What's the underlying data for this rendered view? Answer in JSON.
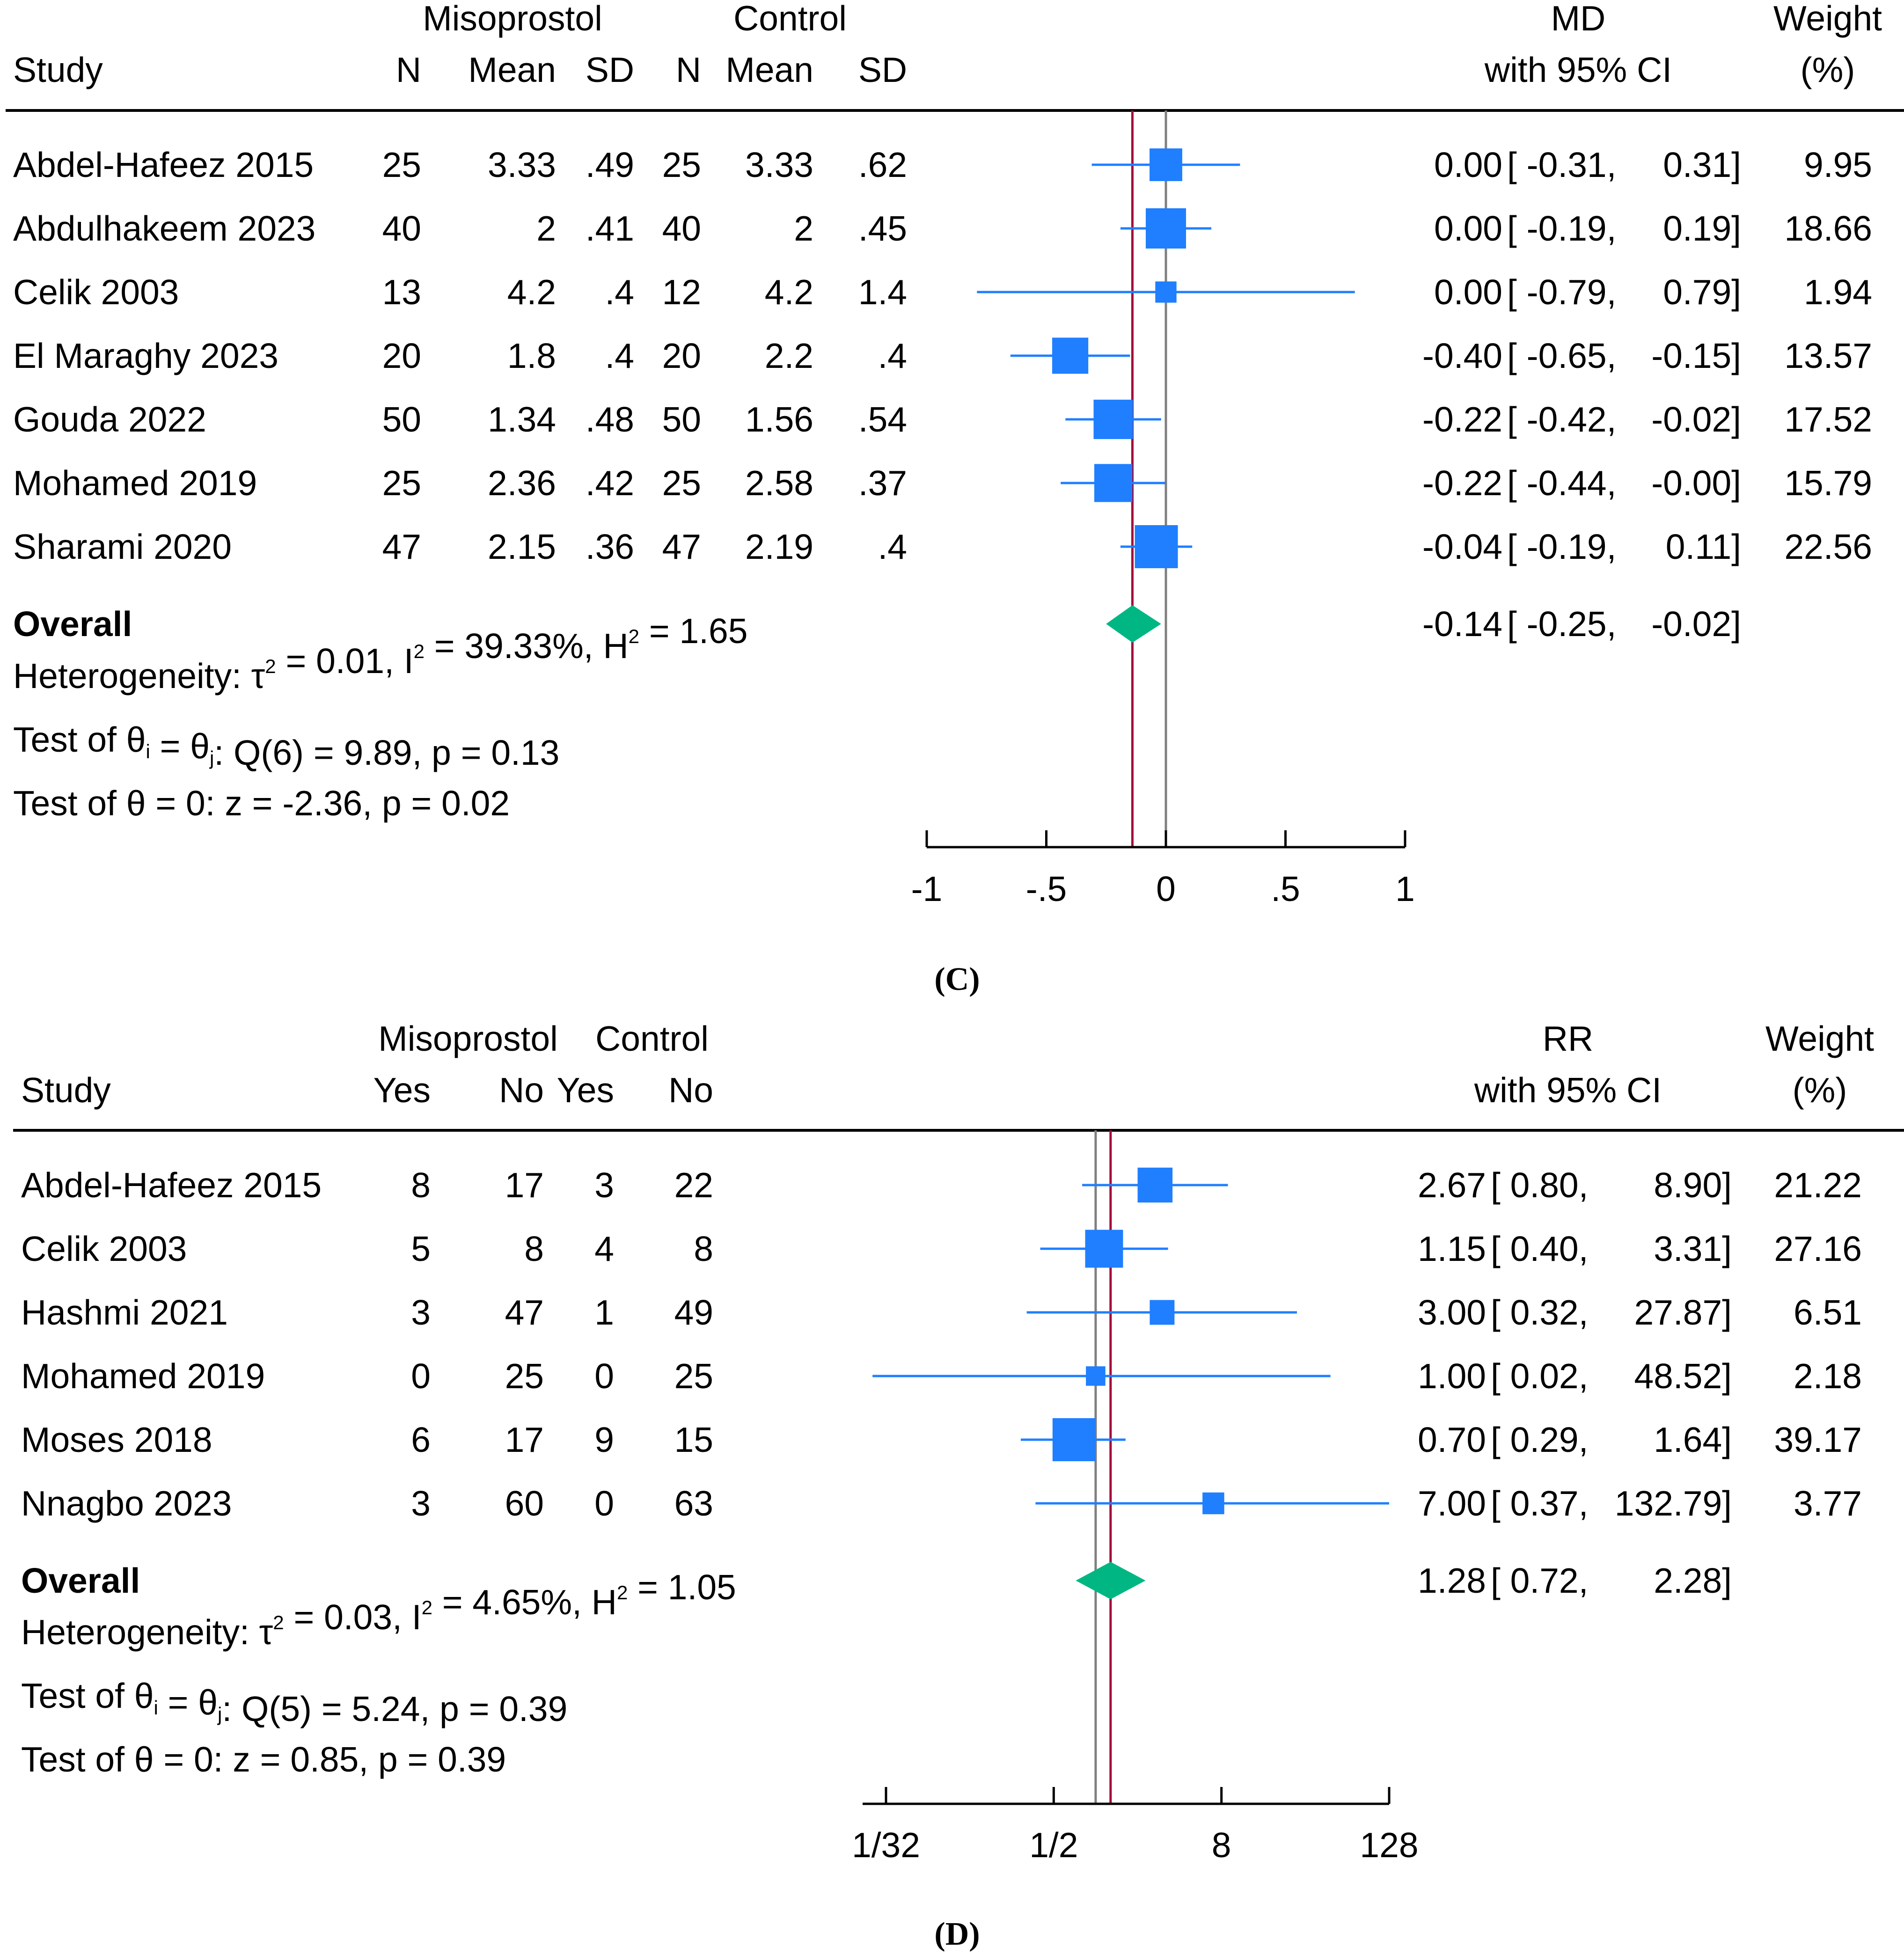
{
  "colors": {
    "study_marker": "#1f7fff",
    "overall_diamond": "#00b783",
    "overall_line": "#a3093a",
    "null_line": "#7f7f7f",
    "text": "#000000",
    "background": "#ffffff"
  },
  "chart_data": [
    {
      "type": "forest",
      "caption": "(C)",
      "effect_label": "MD",
      "effect_sublabel": "with 95% CI",
      "weight_label": "Weight",
      "weight_unit": "(%)",
      "study_header": "Study",
      "group_headers": [
        "Misoprostol",
        "Control"
      ],
      "column_headers": [
        "N",
        "Mean",
        "SD",
        "N",
        "Mean",
        "SD"
      ],
      "scale": "linear",
      "xlim": [
        -1,
        1
      ],
      "ticks": [
        -1,
        -0.5,
        0,
        0.5,
        1
      ],
      "tick_labels": [
        "-1",
        "-.5",
        "0",
        ".5",
        "1"
      ],
      "null_value": 0,
      "studies": [
        {
          "name": "Abdel-Hafeez 2015",
          "cols": [
            "25",
            "3.33",
            ".49",
            "25",
            "3.33",
            ".62"
          ],
          "est": 0.0,
          "lo": -0.31,
          "hi": 0.31,
          "est_text": "0.00",
          "lo_text": "-0.31,",
          "hi_text": "0.31]",
          "weight": 9.95,
          "weight_text": "9.95"
        },
        {
          "name": "Abdulhakeem 2023",
          "cols": [
            "40",
            "2",
            ".41",
            "40",
            "2",
            ".45"
          ],
          "est": 0.0,
          "lo": -0.19,
          "hi": 0.19,
          "est_text": "0.00",
          "lo_text": "-0.19,",
          "hi_text": "0.19]",
          "weight": 18.66,
          "weight_text": "18.66"
        },
        {
          "name": "Celik 2003",
          "cols": [
            "13",
            "4.2",
            ".4",
            "12",
            "4.2",
            "1.4"
          ],
          "est": 0.0,
          "lo": -0.79,
          "hi": 0.79,
          "est_text": "0.00",
          "lo_text": "-0.79,",
          "hi_text": "0.79]",
          "weight": 1.94,
          "weight_text": "1.94"
        },
        {
          "name": "El Maraghy 2023",
          "cols": [
            "20",
            "1.8",
            ".4",
            "20",
            "2.2",
            ".4"
          ],
          "est": -0.4,
          "lo": -0.65,
          "hi": -0.15,
          "est_text": "-0.40",
          "lo_text": "-0.65,",
          "hi_text": "-0.15]",
          "weight": 13.57,
          "weight_text": "13.57"
        },
        {
          "name": "Gouda 2022",
          "cols": [
            "50",
            "1.34",
            ".48",
            "50",
            "1.56",
            ".54"
          ],
          "est": -0.22,
          "lo": -0.42,
          "hi": -0.02,
          "est_text": "-0.22",
          "lo_text": "-0.42,",
          "hi_text": "-0.02]",
          "weight": 17.52,
          "weight_text": "17.52"
        },
        {
          "name": "Mohamed 2019",
          "cols": [
            "25",
            "2.36",
            ".42",
            "25",
            "2.58",
            ".37"
          ],
          "est": -0.22,
          "lo": -0.44,
          "hi": -0.0,
          "est_text": "-0.22",
          "lo_text": "-0.44,",
          "hi_text": "-0.00]",
          "weight": 15.79,
          "weight_text": "15.79"
        },
        {
          "name": "Sharami 2020",
          "cols": [
            "47",
            "2.15",
            ".36",
            "47",
            "2.19",
            ".4"
          ],
          "est": -0.04,
          "lo": -0.19,
          "hi": 0.11,
          "est_text": "-0.04",
          "lo_text": "-0.19,",
          "hi_text": "0.11]",
          "weight": 22.56,
          "weight_text": "22.56"
        }
      ],
      "overall": {
        "label": "Overall",
        "est": -0.14,
        "lo": -0.25,
        "hi": -0.02,
        "est_text": "-0.14",
        "lo_text": "-0.25,",
        "hi_text": "-0.02]"
      },
      "heterogeneity": {
        "prefix": "Heterogeneity: τ",
        "tau_sup": "2",
        "mid1": " = 0.01, I",
        "i_sup": "2",
        "mid2": " = 39.33%, H",
        "h_sup": "2",
        "suffix": " = 1.65"
      },
      "test_homog": {
        "prefix": "Test of θ",
        "sub_i": "i",
        "mid": " = θ",
        "sub_j": "j",
        "suffix": ": Q(6) = 9.89, p = 0.13"
      },
      "test_overall": "Test of θ = 0: z = -2.36, p = 0.02"
    },
    {
      "type": "forest",
      "caption": "(D)",
      "effect_label": "RR",
      "effect_sublabel": "with 95% CI",
      "weight_label": "Weight",
      "weight_unit": "(%)",
      "study_header": "Study",
      "group_headers": [
        "Misoprostol",
        "Control"
      ],
      "column_headers": [
        "Yes",
        "No",
        "Yes",
        "No"
      ],
      "scale": "log2",
      "xlim": [
        0.025,
        128
      ],
      "ticks": [
        0.03125,
        0.5,
        8,
        128
      ],
      "tick_labels": [
        "1/32",
        "1/2",
        "8",
        "128"
      ],
      "null_value": 1,
      "studies": [
        {
          "name": "Abdel-Hafeez 2015",
          "cols": [
            "8",
            "17",
            "3",
            "22"
          ],
          "est": 2.67,
          "lo": 0.8,
          "hi": 8.9,
          "est_text": "2.67",
          "lo_text": "0.80,",
          "hi_text": "8.90]",
          "weight": 21.22,
          "weight_text": "21.22"
        },
        {
          "name": "Celik 2003",
          "cols": [
            "5",
            "8",
            "4",
            "8"
          ],
          "est": 1.15,
          "lo": 0.4,
          "hi": 3.31,
          "est_text": "1.15",
          "lo_text": "0.40,",
          "hi_text": "3.31]",
          "weight": 27.16,
          "weight_text": "27.16"
        },
        {
          "name": "Hashmi 2021",
          "cols": [
            "3",
            "47",
            "1",
            "49"
          ],
          "est": 3.0,
          "lo": 0.32,
          "hi": 27.87,
          "est_text": "3.00",
          "lo_text": "0.32,",
          "hi_text": "27.87]",
          "weight": 6.51,
          "weight_text": "6.51"
        },
        {
          "name": "Mohamed 2019",
          "cols": [
            "0",
            "25",
            "0",
            "25"
          ],
          "est": 1.0,
          "lo": 0.02,
          "hi": 48.52,
          "est_text": "1.00",
          "lo_text": "0.02,",
          "hi_text": "48.52]",
          "weight": 2.18,
          "weight_text": "2.18"
        },
        {
          "name": "Moses 2018",
          "cols": [
            "6",
            "17",
            "9",
            "15"
          ],
          "est": 0.7,
          "lo": 0.29,
          "hi": 1.64,
          "est_text": "0.70",
          "lo_text": "0.29,",
          "hi_text": "1.64]",
          "weight": 39.17,
          "weight_text": "39.17"
        },
        {
          "name": "Nnagbo 2023",
          "cols": [
            "3",
            "60",
            "0",
            "63"
          ],
          "est": 7.0,
          "lo": 0.37,
          "hi": 132.79,
          "est_text": "7.00",
          "lo_text": "0.37,",
          "hi_text": "132.79]",
          "weight": 3.77,
          "weight_text": "3.77"
        }
      ],
      "overall": {
        "label": "Overall",
        "est": 1.28,
        "lo": 0.72,
        "hi": 2.28,
        "est_text": "1.28",
        "lo_text": "0.72,",
        "hi_text": "2.28]"
      },
      "heterogeneity": {
        "prefix": "Heterogeneity: τ",
        "tau_sup": "2",
        "mid1": " = 0.03, I",
        "i_sup": "2",
        "mid2": " = 4.65%, H",
        "h_sup": "2",
        "suffix": " = 1.05"
      },
      "test_homog": {
        "prefix": "Test of θ",
        "sub_i": "i",
        "mid": " = θ",
        "sub_j": "j",
        "suffix": ": Q(5) = 5.24, p = 0.39"
      },
      "test_overall": "Test of θ = 0: z = 0.85, p = 0.39"
    }
  ]
}
